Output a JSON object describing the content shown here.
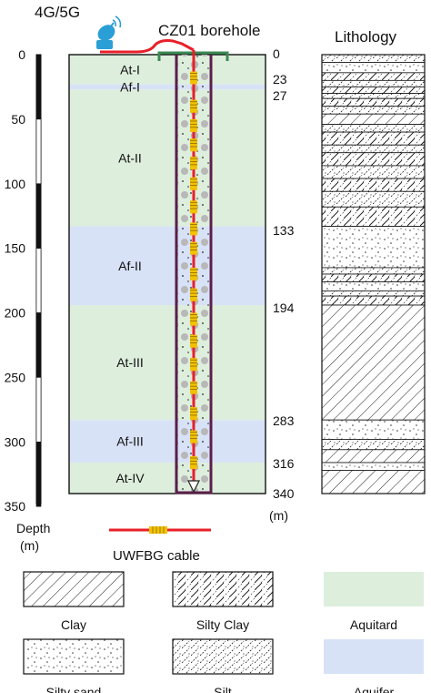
{
  "header": {
    "antenna_label": "4G/5G",
    "borehole_title": "CZ01 borehole",
    "lithology_title": "Lithology"
  },
  "depth_axis": {
    "ticks": [
      "0",
      "50",
      "100",
      "150",
      "200",
      "250",
      "300",
      "350"
    ],
    "label_line1": "Depth",
    "label_line2": "(m)"
  },
  "layers": [
    {
      "name": "At-I",
      "top": 0,
      "bottom": 23,
      "kind": "aquitard"
    },
    {
      "name": "Af-I",
      "top": 23,
      "bottom": 27,
      "kind": "aquifer"
    },
    {
      "name": "At-II",
      "top": 27,
      "bottom": 133,
      "kind": "aquitard"
    },
    {
      "name": "Af-II",
      "top": 133,
      "bottom": 194,
      "kind": "aquifer"
    },
    {
      "name": "At-III",
      "top": 194,
      "bottom": 283,
      "kind": "aquitard"
    },
    {
      "name": "Af-III",
      "top": 283,
      "bottom": 316,
      "kind": "aquifer"
    },
    {
      "name": "At-IV",
      "top": 316,
      "bottom": 340,
      "kind": "aquitard"
    }
  ],
  "boundary_depths": [
    "0",
    "23",
    "27",
    "133",
    "194",
    "283",
    "316",
    "340"
  ],
  "boundary_unit": "(m)",
  "lithology_column": [
    {
      "top": 0,
      "bottom": 6,
      "type": "silt"
    },
    {
      "top": 6,
      "bottom": 14,
      "type": "silty_sand"
    },
    {
      "top": 14,
      "bottom": 20,
      "type": "silty_clay"
    },
    {
      "top": 20,
      "bottom": 25,
      "type": "silt"
    },
    {
      "top": 25,
      "bottom": 30,
      "type": "silty_clay"
    },
    {
      "top": 30,
      "bottom": 34,
      "type": "silt"
    },
    {
      "top": 34,
      "bottom": 40,
      "type": "silty_clay"
    },
    {
      "top": 40,
      "bottom": 46,
      "type": "silt"
    },
    {
      "top": 46,
      "bottom": 54,
      "type": "clay"
    },
    {
      "top": 54,
      "bottom": 60,
      "type": "silt"
    },
    {
      "top": 60,
      "bottom": 70,
      "type": "silty_clay"
    },
    {
      "top": 70,
      "bottom": 76,
      "type": "silt"
    },
    {
      "top": 76,
      "bottom": 86,
      "type": "silty_clay"
    },
    {
      "top": 86,
      "bottom": 96,
      "type": "silt"
    },
    {
      "top": 96,
      "bottom": 106,
      "type": "silty_clay"
    },
    {
      "top": 106,
      "bottom": 118,
      "type": "silt"
    },
    {
      "top": 118,
      "bottom": 133,
      "type": "silty_clay"
    },
    {
      "top": 133,
      "bottom": 165,
      "type": "silty_sand"
    },
    {
      "top": 165,
      "bottom": 170,
      "type": "silt"
    },
    {
      "top": 170,
      "bottom": 176,
      "type": "silty_clay"
    },
    {
      "top": 176,
      "bottom": 183,
      "type": "silty_sand"
    },
    {
      "top": 183,
      "bottom": 187,
      "type": "silt"
    },
    {
      "top": 187,
      "bottom": 194,
      "type": "silty_clay"
    },
    {
      "top": 194,
      "bottom": 283,
      "type": "clay"
    },
    {
      "top": 283,
      "bottom": 298,
      "type": "silty_sand"
    },
    {
      "top": 298,
      "bottom": 306,
      "type": "silt"
    },
    {
      "top": 306,
      "bottom": 316,
      "type": "clay"
    },
    {
      "top": 316,
      "bottom": 322,
      "type": "silty_sand"
    },
    {
      "top": 322,
      "bottom": 340,
      "type": "clay"
    }
  ],
  "cable": {
    "label": "UWFBG cable",
    "grating_depths": [
      18,
      40,
      55,
      70,
      84,
      100,
      118,
      135,
      150,
      170,
      186,
      205,
      222,
      240,
      258,
      278,
      296,
      316
    ]
  },
  "legend": [
    {
      "label": "Clay",
      "pattern": "clay"
    },
    {
      "label": "Silty Clay",
      "pattern": "silty_clay"
    },
    {
      "label": "Aquitard",
      "pattern": "aquitard"
    },
    {
      "label": "Silty sand",
      "pattern": "silty_sand"
    },
    {
      "label": "Silt",
      "pattern": "silt"
    },
    {
      "label": "Aquifer",
      "pattern": "aquifer"
    }
  ],
  "colors": {
    "aquitard": "#ddeedd",
    "aquifer": "#d8e2f7",
    "cable_red": "#e8202a",
    "grating_yellow": "#f2c200",
    "casing_purple": "#5a1f4a",
    "surface_green": "#3c8a55",
    "antenna_blue": "#2a9fd6"
  }
}
